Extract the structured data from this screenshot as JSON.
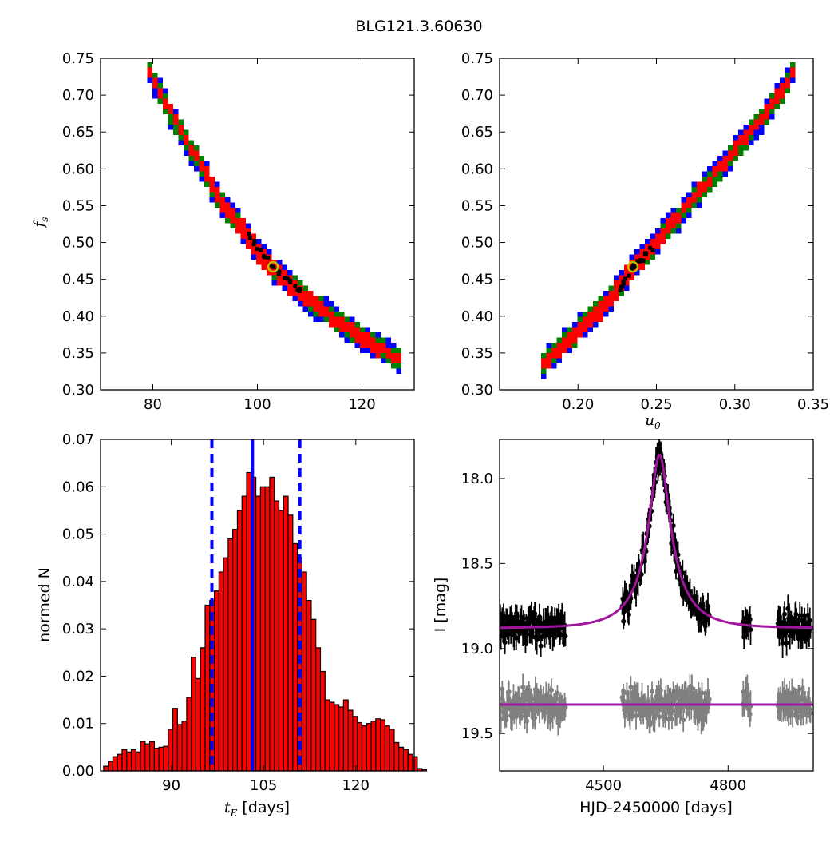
{
  "title": "BLG121.3.60630",
  "chart_data": [
    {
      "type": "heatmap",
      "panel": "top-left",
      "xlabel": "",
      "ylabel_symbol": "f",
      "ylabel_subscript": "s",
      "xlim": [
        70,
        130
      ],
      "ylim": [
        0.3,
        0.75
      ],
      "xticks": [
        "80",
        "100",
        "120"
      ],
      "xtick_values": [
        80,
        100,
        120
      ],
      "yticks": [
        "0.30",
        "0.35",
        "0.40",
        "0.45",
        "0.50",
        "0.55",
        "0.60",
        "0.65",
        "0.70",
        "0.75"
      ],
      "ytick_values": [
        0.3,
        0.35,
        0.4,
        0.45,
        0.5,
        0.55,
        0.6,
        0.65,
        0.7,
        0.75
      ],
      "curve": [
        [
          79,
          0.74
        ],
        [
          83,
          0.68
        ],
        [
          87,
          0.63
        ],
        [
          90,
          0.595
        ],
        [
          93,
          0.555
        ],
        [
          97,
          0.52
        ],
        [
          100,
          0.49
        ],
        [
          103,
          0.465
        ],
        [
          107,
          0.44
        ],
        [
          110,
          0.42
        ],
        [
          115,
          0.395
        ],
        [
          120,
          0.37
        ],
        [
          125,
          0.35
        ],
        [
          128,
          0.34
        ]
      ],
      "best_fit": [
        103,
        0.467
      ],
      "colors": {
        "level3": "#0000ff",
        "level2": "#008000",
        "level1": "#ff0000",
        "core": "#000000",
        "marker": "#bfbf00"
      }
    },
    {
      "type": "heatmap",
      "panel": "top-right",
      "xlabel_symbol": "u",
      "xlabel_subscript": "0",
      "xlim": [
        0.15,
        0.35
      ],
      "ylim": [
        0.3,
        0.75
      ],
      "xticks": [
        "0.20",
        "0.25",
        "0.30",
        "0.35"
      ],
      "xtick_values": [
        0.2,
        0.25,
        0.3,
        0.35
      ],
      "yticks": [
        "0.30",
        "0.35",
        "0.40",
        "0.45",
        "0.50",
        "0.55",
        "0.60",
        "0.65",
        "0.70",
        "0.75"
      ],
      "ytick_values": [
        0.3,
        0.35,
        0.4,
        0.45,
        0.5,
        0.55,
        0.6,
        0.65,
        0.7,
        0.75
      ],
      "curve": [
        [
          0.178,
          0.335
        ],
        [
          0.2,
          0.38
        ],
        [
          0.22,
          0.42
        ],
        [
          0.235,
          0.467
        ],
        [
          0.25,
          0.5
        ],
        [
          0.27,
          0.55
        ],
        [
          0.29,
          0.6
        ],
        [
          0.31,
          0.65
        ],
        [
          0.33,
          0.705
        ],
        [
          0.34,
          0.745
        ]
      ],
      "best_fit": [
        0.235,
        0.467
      ],
      "colors": {
        "level3": "#0000ff",
        "level2": "#008000",
        "level1": "#ff0000",
        "core": "#000000",
        "marker": "#bfbf00"
      }
    },
    {
      "type": "bar",
      "panel": "bottom-left",
      "xlabel_symbol": "t",
      "xlabel_subscript": "E",
      "xlabel_unit": "[days]",
      "ylabel": "normed N",
      "xlim": [
        78.5,
        129.5
      ],
      "ylim": [
        0,
        0.07
      ],
      "xticks": [
        "90",
        "105",
        "120"
      ],
      "xtick_values": [
        90,
        105,
        120
      ],
      "yticks": [
        "0.00",
        "0.01",
        "0.02",
        "0.03",
        "0.04",
        "0.05",
        "0.06",
        "0.07"
      ],
      "ytick_values": [
        0,
        0.01,
        0.02,
        0.03,
        0.04,
        0.05,
        0.06,
        0.07
      ],
      "bin_start": 79,
      "bin_width": 0.75,
      "values": [
        0.001,
        0.002,
        0.003,
        0.0035,
        0.0045,
        0.004,
        0.0045,
        0.004,
        0.0062,
        0.0057,
        0.0062,
        0.0048,
        0.005,
        0.0052,
        0.0088,
        0.0132,
        0.0098,
        0.0105,
        0.0155,
        0.024,
        0.0195,
        0.026,
        0.035,
        0.036,
        0.038,
        0.042,
        0.045,
        0.049,
        0.051,
        0.055,
        0.058,
        0.063,
        0.062,
        0.058,
        0.06,
        0.06,
        0.062,
        0.057,
        0.055,
        0.058,
        0.054,
        0.048,
        0.045,
        0.042,
        0.036,
        0.032,
        0.026,
        0.021,
        0.015,
        0.0145,
        0.014,
        0.0135,
        0.015,
        0.0128,
        0.0115,
        0.0102,
        0.0095,
        0.01,
        0.0105,
        0.011,
        0.0108,
        0.0095,
        0.0088,
        0.006,
        0.005,
        0.0045,
        0.0035,
        0.003,
        0.0005,
        0.0003
      ],
      "median": 103.2,
      "lower": 96.6,
      "upper": 110.9,
      "colors": {
        "bar": "#ff0000",
        "edge": "#000000",
        "lines": "#0000ff"
      }
    },
    {
      "type": "scatter",
      "panel": "bottom-right",
      "xlabel": "HJD-2450000 [days]",
      "ylabel": "I [mag]",
      "xlim": [
        4250,
        5005
      ],
      "ylim": [
        19.72,
        17.77
      ],
      "xticks": [
        "4500",
        "4800"
      ],
      "xtick_values": [
        4500,
        4800
      ],
      "yticks": [
        "18.0",
        "18.5",
        "19.0",
        "19.5"
      ],
      "ytick_values": [
        18.0,
        18.5,
        19.0,
        19.5
      ],
      "model": {
        "baseline": 18.88,
        "peak": 17.86,
        "t0": 4635,
        "tE": 103,
        "u0": 0.235
      },
      "residual_baseline": 19.33,
      "segments": [
        [
          4250,
          4410
        ],
        [
          4545,
          4755
        ],
        [
          4835,
          4855
        ],
        [
          4920,
          5000
        ]
      ],
      "colors": {
        "data": "#000000",
        "residual": "#808080",
        "model": "#a0169f"
      }
    }
  ]
}
